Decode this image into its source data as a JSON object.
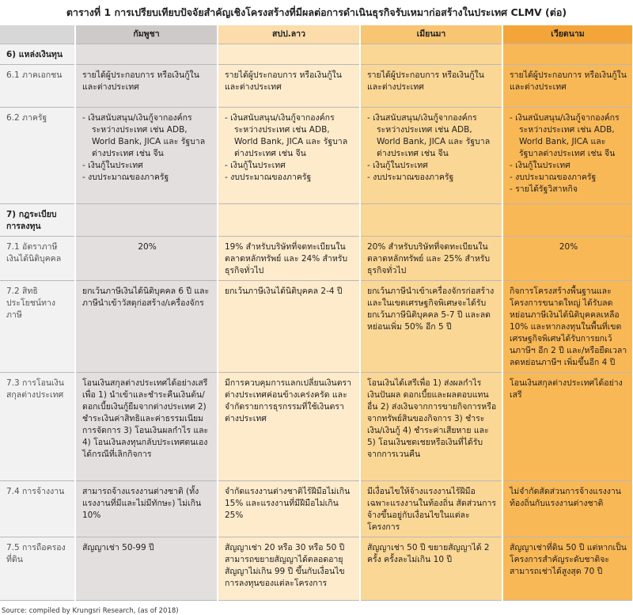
{
  "title": "ตารางที่ 1 การเปรียบเทียบปัจจัยสำคัญเชิงโครงสร้างที่มีผลต่อการดำเนินธุรกิจรับเหมาก่อสร้างในประเทศ CLMV (ต่อ)",
  "table": {
    "header": [
      "กัมพูชา",
      "สปป.ลาว",
      "เมียนมา",
      "เวียดนาม"
    ],
    "rows": [
      {
        "label": "6) แหล่งเงินทุน",
        "cells": []
      },
      {
        "label": "6.1 ภาคเอกชน",
        "cells": [
          [
            "รายได้ผู้ประกอบการ หรือเงินกู้ในและต่างประเทศ"
          ],
          [
            "รายได้ผู้ประกอบการ หรือเงินกู้ในและต่างประเทศ"
          ],
          [
            "รายได้ผู้ประกอบการ หรือเงินกู้ในและต่างประเทศ"
          ],
          [
            "รายได้ผู้ประกอบการ หรือเงินกู้ในและต่างประเทศ"
          ]
        ]
      },
      {
        "label": "6.2 ภาครัฐ",
        "cells": [
          [
            "- เงินสนับสนุน/เงินกู้จากองค์กรระหว่างประเทศ เช่น ADB, World Bank, JICA และ รัฐบาลต่างประเทศ เช่น จีน",
            "- เงินกู้ในประเทศ",
            "- งบประมาณของภาครัฐ"
          ],
          [
            "- เงินสนับสนุน/เงินกู้จากองค์กรระหว่างประเทศ เช่น ADB, World Bank, JICA และ รัฐบาลต่างประเทศ เช่น จีน",
            "- เงินกู้ในประเทศ",
            "- งบประมาณของภาครัฐ"
          ],
          [
            "- เงินสนับสนุน/เงินกู้จากองค์กรระหว่างประเทศ เช่น ADB, World Bank, JICA และ รัฐบาลต่างประเทศ เช่น จีน",
            "- เงินกู้ในประเทศ",
            "- งบประมาณของภาครัฐ"
          ],
          [
            "- เงินสนับสนุน/เงินกู้จากองค์กรระหว่างประเทศ เช่น ADB, World Bank, JICA และ รัฐบาลต่างประเทศ เช่น จีน",
            "- เงินกู้ในประเทศ",
            "- งบประมาณของภาครัฐ",
            "- รายได้รัฐวิสาหกิจ"
          ]
        ]
      },
      {
        "label": "7) กฎระเบียบการลงทุน",
        "cells": []
      },
      {
        "label": "7.1 อัตราภาษีเงินได้นิติบุคคล",
        "cells": [
          [
            "20%"
          ],
          [
            "19% สำหรับบริษัทที่จดทะเบียนในตลาดหลักทรัพย์ และ 24% สำหรับธุรกิจทั่วไป"
          ],
          [
            "20% สำหรับบริษัทที่จดทะเบียนในตลาดหลักทรัพย์ และ 25% สำหรับธุรกิจทั่วไป"
          ],
          [
            "20%"
          ]
        ]
      },
      {
        "label": "7.2 สิทธิประโยชน์ทางภาษี",
        "cells": [
          [
            "ยกเว้นภาษีเงินได้นิติบุคคล 6 ปี และภาษีนำเข้าวัสดุก่อสร้าง/เครื่องจักร"
          ],
          [
            "ยกเว้นภาษีเงินได้นิติบุคคล 2-4 ปี"
          ],
          [
            "ยกเว้นภาษีนำเข้าเครื่องจักรก่อสร้าง และในเขตเศรษฐกิจพิเศษจะได้รับยกเว้นภาษีนิติบุคคล 5-7 ปี และลดหย่อนเพิ่ม 50% อีก 5 ปี"
          ],
          [
            "กิจการโครงสร้างพื้นฐานและโครงการขนาดใหญ่ ได้รับลดหย่อนภาษีเงินได้นิติบุคคลเหลือ 10% และหากลงทุนในพื้นที่เขตเศรษฐกิจพิเศษได้รับการยกเว้นภาษีฯ อีก 2 ปี และ/หรือยืดเวลาลดหย่อนภาษีฯ เพิ่มขึ้นอีก 4 ปี"
          ]
        ]
      },
      {
        "label": "7.3 การโอนเงินสกุลต่างประเทศ",
        "cells": [
          [
            "โอนเงินสกุลต่างประเทศได้อย่างเสรี เพื่อ 1) นำเข้าและชำระคืนเงินต้น/ดอกเบี้ยเงินกู้ยืมจากต่างประเทศ 2) ชำระเงินค่าสิทธิและค่าธรรมเนียมการจัดการ 3) โอนเงินผลกำไร และ 4) โอนเงินลงทุนกลับประเทศตนเองได้กรณีที่เลิกกิจการ"
          ],
          [
            "มีการควบคุมการแลกเปลี่ยนเงินตราต่างประเทศค่อนข้างเคร่งครัด และจำกัดรายการธุรกรรมที่ใช้เงินตราต่างประเทศ"
          ],
          [
            "โอนเงินได้เสรีเพื่อ 1) ส่งผลกำไร เงินปันผล ดอกเบี้ยและผลตอบแทนอื่น 2) ส่งเงินจากการขายกิจการหรือจากทรัพย์สินของกิจการ 3) ชำระเงิน/เงินกู้ 4) ชำระค่าเสียหาย และ 5) โอนเงินชดเชยหรือเงินที่ได้รับจากการเวนคืน"
          ],
          [
            "โอนเงินสกุลต่างประเทศได้อย่างเสรี"
          ]
        ]
      },
      {
        "label": "7.4 การจ้างงาน",
        "cells": [
          [
            "สามารถจ้างแรงงานต่างชาติ (ทั้งแรงงานที่มีและไม่มีทักษะ) ไม่เกิน 10%"
          ],
          [
            "จำกัดแรงงานต่างชาติไร้ฝีมือไม่เกิน 15% และแรงงานที่มีฝีมือไม่เกิน 25%"
          ],
          [
            "มีเงื่อนไขให้จ้างแรงงานไร้ฝีมือเฉพาะแรงงานในท้องถิ่น สัดส่วนการจ้างขึ้นอยู่กับเงื่อนไขในแต่ละโครงการ"
          ],
          [
            "ไม่จำกัดสัดส่วนการจ้างแรงงานท้องถิ่นกับแรงงานต่างชาติ"
          ]
        ]
      },
      {
        "label": "7.5 การถือครองที่ดิน",
        "cells": [
          [
            "สัญญาเช่า 50-99 ปี"
          ],
          [
            "สัญญาเช่า 20 หรือ 30 หรือ 50 ปี สามารถขยายสัญญาได้ตลอดอายุสัญญาไม่เกิน 99 ปี ขึ้นกับเงื่อนไขการลงทุนของแต่ละโครงการ"
          ],
          [
            "สัญญาเช่า 50 ปี ขยายสัญญาได้ 2 ครั้ง ครั้งละไม่เกิน 10 ปี"
          ],
          [
            "สัญญาเช่าที่ดิน 50 ปี แต่หากเป็นโครงการสำคัญระดับชาติจะสามารถเช่าได้สูงสุด 70 ปี"
          ]
        ]
      }
    ]
  },
  "source": "Source: compiled by Krungsri Research, (as of 2018)"
}
